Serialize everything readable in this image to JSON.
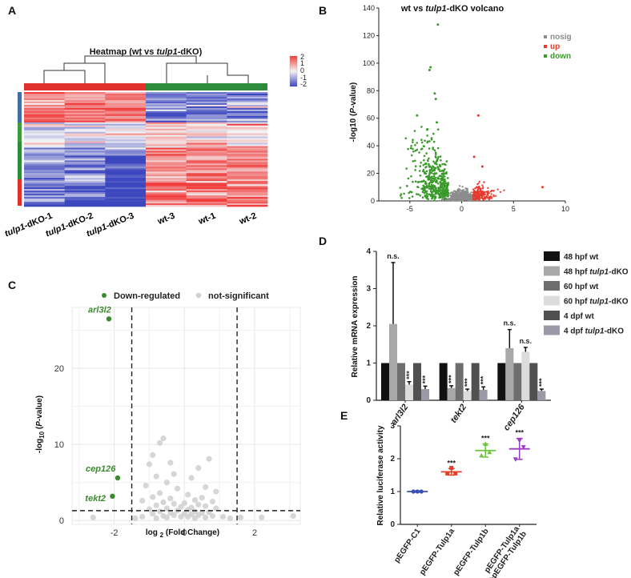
{
  "panels": {
    "a": "A",
    "b": "B",
    "c": "C",
    "d": "D",
    "e": "E"
  },
  "heatmap": {
    "title_pre": "Heatmap (wt vs ",
    "title_gene": "tulp1",
    "title_post": "-dKO)",
    "legend_ticks": [
      "2",
      "1",
      "0",
      "-1",
      "-2"
    ],
    "samples": [
      {
        "gene": "tulp1",
        "suffix": "-dKO-1"
      },
      {
        "gene": "tulp1",
        "suffix": "-dKO-2"
      },
      {
        "gene": "tulp1",
        "suffix": "-dKO-3"
      },
      {
        "gene": "",
        "suffix": "wt-3"
      },
      {
        "gene": "",
        "suffix": "wt-1"
      },
      {
        "gene": "",
        "suffix": "wt-2"
      }
    ],
    "colors": {
      "high": "#f03c3c",
      "low": "#3c46be",
      "mid": "#f4f4f4",
      "group_dko": "#e0312a",
      "group_wt": "#2e8b3a"
    }
  },
  "chart_data": [
    {
      "id": "B",
      "type": "scatter",
      "title": "wt vs tulp1-dKO volcano",
      "xlabel": "",
      "ylabel": "-log10 (P-value)",
      "xlim": [
        -8,
        10
      ],
      "ylim": [
        0,
        140
      ],
      "xticks": [
        "-5",
        "0",
        "5",
        "10"
      ],
      "yticks": [
        "0",
        "20",
        "40",
        "60",
        "80",
        "100",
        "120",
        "140"
      ],
      "legend_position": "top-right",
      "series": [
        {
          "name": "nosig",
          "color": "#8c8c8c"
        },
        {
          "name": "up",
          "color": "#e8392c"
        },
        {
          "name": "down",
          "color": "#3a9a2a"
        }
      ],
      "labeled_points": [
        {
          "series": "down",
          "x": -2.3,
          "y": 128
        },
        {
          "series": "down",
          "x": -3.0,
          "y": 97
        },
        {
          "series": "down",
          "x": -3.1,
          "y": 95
        },
        {
          "series": "down",
          "x": -2.6,
          "y": 78
        },
        {
          "series": "down",
          "x": -2.5,
          "y": 74
        },
        {
          "series": "down",
          "x": -4.3,
          "y": 62
        },
        {
          "series": "down",
          "x": -2.4,
          "y": 57
        },
        {
          "series": "down",
          "x": -3.3,
          "y": 52
        },
        {
          "series": "up",
          "x": 1.6,
          "y": 62
        },
        {
          "series": "up",
          "x": 1.2,
          "y": 32
        },
        {
          "series": "up",
          "x": 2.0,
          "y": 25
        },
        {
          "series": "up",
          "x": 7.8,
          "y": 10
        }
      ]
    },
    {
      "id": "C",
      "type": "scatter",
      "title": "",
      "xlabel": "log 2 (Fold Change)",
      "ylabel": "-log10 (P-value)",
      "xlim": [
        -3.2,
        3.3
      ],
      "ylim": [
        -0.5,
        28
      ],
      "xticks": [
        "-2",
        "0",
        "2"
      ],
      "yticks": [
        "0",
        "10",
        "20"
      ],
      "thresholds": {
        "x": [
          -1.5,
          1.5
        ],
        "y": 1.3
      },
      "legend_position": "top",
      "series": [
        {
          "name": "Down-regulated",
          "color": "#3b8a2e"
        },
        {
          "name": "not-significant",
          "color": "#cfcfcf"
        }
      ],
      "labels": [
        {
          "text": "arl3l2",
          "x": -2.15,
          "y": 26.5
        },
        {
          "text": "cep126",
          "x": -1.9,
          "y": 5.6
        },
        {
          "text": "tekt2",
          "x": -2.05,
          "y": 3.2
        }
      ],
      "points_down": [
        [
          -2.15,
          26.5
        ],
        [
          -1.9,
          5.6
        ],
        [
          -2.05,
          3.2
        ]
      ],
      "points_ns": [
        [
          -0.6,
          10.8
        ],
        [
          -0.7,
          10.2
        ],
        [
          -0.9,
          8.6
        ],
        [
          0.7,
          8.1
        ],
        [
          -0.4,
          7.6
        ],
        [
          -1.0,
          7.4
        ],
        [
          0.4,
          6.9
        ],
        [
          -0.3,
          6.1
        ],
        [
          -0.8,
          5.8
        ],
        [
          0.2,
          5.6
        ],
        [
          -0.5,
          5.0
        ],
        [
          -1.1,
          4.6
        ],
        [
          0.6,
          4.4
        ],
        [
          -0.2,
          4.2
        ],
        [
          0.9,
          3.8
        ],
        [
          -0.7,
          3.6
        ],
        [
          0.1,
          3.4
        ],
        [
          -0.9,
          3.1
        ],
        [
          0.5,
          3.0
        ],
        [
          -0.4,
          2.9
        ],
        [
          0.3,
          2.7
        ],
        [
          -1.2,
          2.6
        ],
        [
          0.8,
          2.5
        ],
        [
          -0.6,
          2.4
        ],
        [
          0.0,
          2.3
        ],
        [
          -0.3,
          2.2
        ],
        [
          0.4,
          2.1
        ],
        [
          -0.8,
          2.0
        ],
        [
          0.6,
          1.9
        ],
        [
          -0.1,
          1.8
        ],
        [
          0.2,
          1.7
        ],
        [
          -0.5,
          1.6
        ],
        [
          0.9,
          1.6
        ],
        [
          -1.0,
          1.5
        ],
        [
          0.1,
          1.4
        ],
        [
          -0.2,
          1.3
        ],
        [
          0.3,
          1.2
        ],
        [
          -0.7,
          1.2
        ],
        [
          0.7,
          1.1
        ],
        [
          -0.4,
          1.0
        ],
        [
          0.5,
          1.0
        ],
        [
          0.0,
          0.9
        ],
        [
          -0.9,
          0.9
        ],
        [
          0.2,
          0.8
        ],
        [
          -0.3,
          0.7
        ],
        [
          0.4,
          0.7
        ],
        [
          -0.6,
          0.6
        ],
        [
          0.8,
          0.6
        ],
        [
          -0.1,
          0.5
        ],
        [
          0.1,
          0.5
        ],
        [
          -1.2,
          0.5
        ],
        [
          1.1,
          0.5
        ],
        [
          0.6,
          0.4
        ],
        [
          -0.5,
          0.4
        ],
        [
          1.6,
          0.4
        ],
        [
          2.2,
          0.4
        ],
        [
          3.1,
          0.6
        ],
        [
          -2.6,
          0.4
        ],
        [
          -0.8,
          0.3
        ],
        [
          0.3,
          0.3
        ],
        [
          1.3,
          0.3
        ],
        [
          -1.4,
          0.3
        ]
      ]
    },
    {
      "id": "D",
      "type": "bar",
      "title": "",
      "ylabel": "Relative mRNA expression",
      "ylim": [
        0,
        4
      ],
      "yticks": [
        "0",
        "1",
        "2",
        "3",
        "4"
      ],
      "categories": [
        "arl3l2",
        "tekt2",
        "cep126"
      ],
      "series": [
        {
          "name": "48 hpf wt",
          "color": "#111111",
          "values": [
            1.0,
            1.0,
            1.0
          ],
          "errors": [
            0,
            0,
            0
          ]
        },
        {
          "name": "48 hpf tulp1-dKO",
          "color": "#a8a8a8",
          "values": [
            2.05,
            0.33,
            1.4
          ],
          "errors": [
            1.65,
            0.06,
            0.5
          ]
        },
        {
          "name": "60 hpf wt",
          "color": "#6e6e6e",
          "values": [
            1.0,
            1.0,
            1.0
          ],
          "errors": [
            0,
            0,
            0
          ]
        },
        {
          "name": "60 hpf tulp1-dKO",
          "color": "#dcdcdc",
          "values": [
            0.42,
            0.25,
            1.3
          ],
          "errors": [
            0.08,
            0.05,
            0.12
          ]
        },
        {
          "name": "4 dpf wt",
          "color": "#505050",
          "values": [
            1.0,
            1.0,
            1.0
          ],
          "errors": [
            0,
            0,
            0
          ]
        },
        {
          "name": "4 dpf tulp1-dKO",
          "color": "#9a9aa6",
          "values": [
            0.3,
            0.28,
            0.25
          ],
          "errors": [
            0.08,
            0.08,
            0.05
          ]
        }
      ],
      "significance": [
        {
          "category": 0,
          "series": 1,
          "text": "n.s."
        },
        {
          "category": 0,
          "series": 3,
          "text": "***"
        },
        {
          "category": 0,
          "series": 5,
          "text": "***"
        },
        {
          "category": 1,
          "series": 1,
          "text": "***"
        },
        {
          "category": 1,
          "series": 3,
          "text": "***"
        },
        {
          "category": 1,
          "series": 5,
          "text": "***"
        },
        {
          "category": 2,
          "series": 1,
          "text": "n.s."
        },
        {
          "category": 2,
          "series": 3,
          "text": "n.s."
        },
        {
          "category": 2,
          "series": 5,
          "text": "***"
        }
      ]
    },
    {
      "id": "E",
      "type": "scatter",
      "title": "",
      "ylabel": "Relative luciferase activity",
      "ylim": [
        0,
        3
      ],
      "yticks": [
        "0",
        "1",
        "2",
        "3"
      ],
      "categories": [
        "pEGFP-C1",
        "pEGFP-Tulp1a",
        "pEGFP-Tulp1b",
        "pEGFP-Tulp1a\n+pEGFP-Tulp1b"
      ],
      "colors": [
        "#3a4fb4",
        "#e3402a",
        "#6cc43a",
        "#9b3cc4"
      ],
      "means": [
        1.0,
        1.6,
        2.25,
        2.3
      ],
      "errors": [
        0.02,
        0.1,
        0.2,
        0.32
      ],
      "points": [
        [
          1.0,
          1.0,
          1.0
        ],
        [
          1.55,
          1.72,
          1.55
        ],
        [
          2.1,
          2.45,
          2.2
        ],
        [
          1.98,
          2.55,
          2.35
        ]
      ],
      "significance": [
        "",
        "***",
        "***",
        "***"
      ]
    }
  ]
}
